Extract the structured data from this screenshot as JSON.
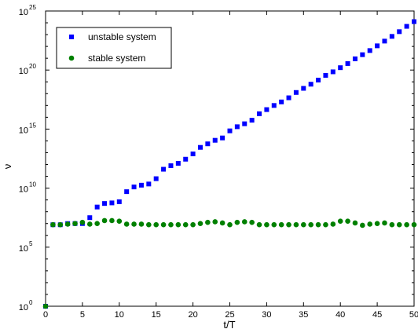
{
  "chart_data": {
    "type": "scatter",
    "title": "",
    "xlabel": "t/T",
    "ylabel": "ν",
    "xlim": [
      0,
      50
    ],
    "ylim_exponent": [
      0,
      25
    ],
    "yscale": "log",
    "xticks": [
      "0",
      "5",
      "10",
      "15",
      "20",
      "25",
      "30",
      "35",
      "40",
      "45",
      "50"
    ],
    "yticks": [
      {
        "base": "10",
        "exp": "0"
      },
      {
        "base": "10",
        "exp": "5"
      },
      {
        "base": "10",
        "exp": "10"
      },
      {
        "base": "10",
        "exp": "15"
      },
      {
        "base": "10",
        "exp": "20"
      },
      {
        "base": "10",
        "exp": "25"
      }
    ],
    "grid": false,
    "legend_position": "top-left",
    "series": [
      {
        "name": "unstable system",
        "marker": "square",
        "color": "#0000ff",
        "x": [
          0,
          1,
          2,
          3,
          4,
          5,
          6,
          7,
          8,
          9,
          10,
          11,
          12,
          13,
          14,
          15,
          16,
          17,
          18,
          19,
          20,
          21,
          22,
          23,
          24,
          25,
          26,
          27,
          28,
          29,
          30,
          31,
          32,
          33,
          34,
          35,
          36,
          37,
          38,
          39,
          40,
          41,
          42,
          43,
          44,
          45,
          46,
          47,
          48,
          49,
          50
        ],
        "y_log10": [
          0,
          6.9,
          6.9,
          7.0,
          7.0,
          7.0,
          7.5,
          8.4,
          8.7,
          8.75,
          8.85,
          9.7,
          10.1,
          10.25,
          10.35,
          10.8,
          11.6,
          11.9,
          12.1,
          12.45,
          12.9,
          13.45,
          13.75,
          14.05,
          14.25,
          14.85,
          15.2,
          15.45,
          15.75,
          16.3,
          16.65,
          17.0,
          17.3,
          17.65,
          18.1,
          18.45,
          18.8,
          19.15,
          19.55,
          19.85,
          20.2,
          20.55,
          20.95,
          21.3,
          21.65,
          22.05,
          22.45,
          22.85,
          23.25,
          23.7,
          24.1
        ]
      },
      {
        "name": "stable system",
        "marker": "circle",
        "color": "#008000",
        "x": [
          0,
          1,
          2,
          3,
          4,
          5,
          6,
          7,
          8,
          9,
          10,
          11,
          12,
          13,
          14,
          15,
          16,
          17,
          18,
          19,
          20,
          21,
          22,
          23,
          24,
          25,
          26,
          27,
          28,
          29,
          30,
          31,
          32,
          33,
          34,
          35,
          36,
          37,
          38,
          39,
          40,
          41,
          42,
          43,
          44,
          45,
          46,
          47,
          48,
          49,
          50
        ],
        "y_log10": [
          0,
          6.9,
          6.9,
          6.95,
          7.0,
          7.1,
          6.95,
          7.0,
          7.25,
          7.25,
          7.2,
          6.95,
          6.95,
          6.95,
          6.9,
          6.9,
          6.9,
          6.9,
          6.9,
          6.9,
          6.9,
          7.0,
          7.1,
          7.15,
          7.05,
          6.9,
          7.1,
          7.15,
          7.1,
          6.9,
          6.9,
          6.9,
          6.9,
          6.9,
          6.9,
          6.9,
          6.9,
          6.9,
          6.9,
          6.95,
          7.2,
          7.2,
          7.05,
          6.85,
          6.95,
          7.0,
          7.05,
          6.9,
          6.9,
          6.9,
          6.9
        ]
      }
    ]
  }
}
